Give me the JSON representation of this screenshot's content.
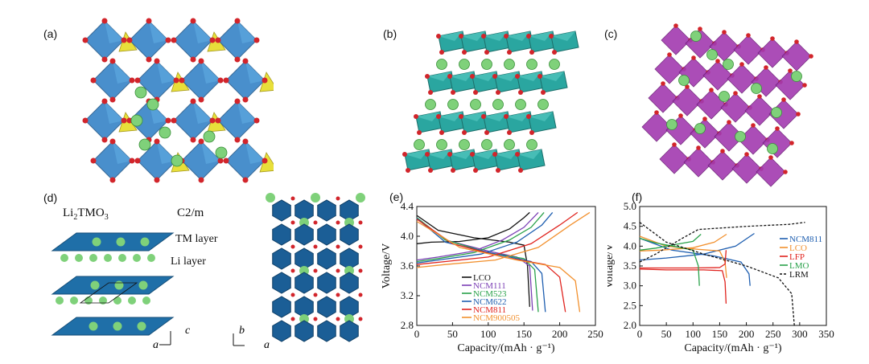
{
  "panels": {
    "a": {
      "label": "(a)"
    },
    "b": {
      "label": "(b)"
    },
    "c": {
      "label": "(c)"
    },
    "d": {
      "label": "(d)",
      "formula_main": "Li",
      "formula_sub": "2",
      "formula_rest": "TMO",
      "formula_sub2": "3",
      "space_group": "C2/m",
      "tm_layer": "TM layer",
      "li_layer": "Li layer",
      "axis_c": "c",
      "axis_a": "a",
      "axis_b": "b",
      "axis_a2": "a"
    },
    "e": {
      "label": "(e)"
    },
    "f": {
      "label": "(f)"
    }
  },
  "colors": {
    "blue_octa": "#3a86c8",
    "yellow_tetra": "#e8df3a",
    "teal_octa": "#2aa6a0",
    "purple_octa": "#a33ab0",
    "li_green": "#7fd17a",
    "oxygen_red": "#d2252b",
    "layer_blue": "#1f6fa8"
  },
  "chart_data": [
    {
      "type": "line",
      "panel": "e",
      "xlabel": "Capacity/(mAh · g⁻¹)",
      "ylabel": "Voltage/V",
      "xlim": [
        0,
        250
      ],
      "ylim": [
        2.8,
        4.4
      ],
      "xticks": [
        "0",
        "50",
        "100",
        "150",
        "200",
        "250"
      ],
      "yticks": [
        "2.8",
        "3.2",
        "3.6",
        "4.0",
        "4.4"
      ],
      "legend_position": "bottom-center",
      "series": [
        {
          "name": "LCO",
          "color": "#111111",
          "charge": [
            [
              0,
              3.9
            ],
            [
              20,
              3.92
            ],
            [
              60,
              3.93
            ],
            [
              100,
              3.98
            ],
            [
              130,
              4.1
            ],
            [
              150,
              4.25
            ],
            [
              158,
              4.32
            ]
          ],
          "discharge": [
            [
              0,
              4.28
            ],
            [
              30,
              4.08
            ],
            [
              80,
              3.98
            ],
            [
              130,
              3.92
            ],
            [
              150,
              3.88
            ],
            [
              155,
              3.6
            ],
            [
              158,
              3.05
            ]
          ]
        },
        {
          "name": "NCM111",
          "color": "#7b3fb5",
          "charge": [
            [
              0,
              3.68
            ],
            [
              30,
              3.72
            ],
            [
              80,
              3.8
            ],
            [
              120,
              3.95
            ],
            [
              150,
              4.12
            ],
            [
              170,
              4.32
            ]
          ],
          "discharge": [
            [
              0,
              4.25
            ],
            [
              40,
              3.95
            ],
            [
              100,
              3.8
            ],
            [
              140,
              3.72
            ],
            [
              158,
              3.6
            ],
            [
              162,
              3.0
            ]
          ]
        },
        {
          "name": "NCM523",
          "color": "#2aa24a",
          "charge": [
            [
              0,
              3.66
            ],
            [
              30,
              3.7
            ],
            [
              80,
              3.78
            ],
            [
              130,
              3.95
            ],
            [
              160,
              4.12
            ],
            [
              178,
              4.32
            ]
          ],
          "discharge": [
            [
              0,
              4.25
            ],
            [
              40,
              3.95
            ],
            [
              100,
              3.78
            ],
            [
              150,
              3.7
            ],
            [
              165,
              3.55
            ],
            [
              170,
              2.98
            ]
          ]
        },
        {
          "name": "NCM622",
          "color": "#1f5fb0",
          "charge": [
            [
              0,
              3.64
            ],
            [
              30,
              3.68
            ],
            [
              90,
              3.76
            ],
            [
              140,
              3.92
            ],
            [
              175,
              4.15
            ],
            [
              190,
              4.32
            ]
          ],
          "discharge": [
            [
              0,
              4.24
            ],
            [
              40,
              3.92
            ],
            [
              110,
              3.76
            ],
            [
              160,
              3.66
            ],
            [
              175,
              3.5
            ],
            [
              180,
              2.98
            ]
          ]
        },
        {
          "name": "NCM811",
          "color": "#e0231e",
          "charge": [
            [
              0,
              3.62
            ],
            [
              40,
              3.66
            ],
            [
              100,
              3.72
            ],
            [
              160,
              3.9
            ],
            [
              200,
              4.15
            ],
            [
              225,
              4.32
            ]
          ],
          "discharge": [
            [
              0,
              4.23
            ],
            [
              50,
              3.9
            ],
            [
              120,
              3.72
            ],
            [
              180,
              3.62
            ],
            [
              200,
              3.45
            ],
            [
              208,
              2.98
            ]
          ]
        },
        {
          "name": "NCM900505",
          "color": "#f2912f",
          "charge": [
            [
              0,
              3.58
            ],
            [
              40,
              3.62
            ],
            [
              110,
              3.68
            ],
            [
              170,
              3.85
            ],
            [
              215,
              4.15
            ],
            [
              242,
              4.32
            ]
          ],
          "discharge": [
            [
              0,
              4.2
            ],
            [
              60,
              3.85
            ],
            [
              140,
              3.68
            ],
            [
              200,
              3.58
            ],
            [
              222,
              3.4
            ],
            [
              228,
              2.98
            ]
          ]
        }
      ]
    },
    {
      "type": "line",
      "panel": "f",
      "xlabel": "Capacity/(mAh · g⁻¹)",
      "ylabel": "Voltage/V",
      "xlim": [
        0,
        350
      ],
      "ylim": [
        2.0,
        5.0
      ],
      "xticks": [
        "0",
        "50",
        "100",
        "150",
        "200",
        "250",
        "300",
        "350"
      ],
      "yticks": [
        "2.0",
        "2.5",
        "3.0",
        "3.5",
        "4.0",
        "4.5",
        "5.0"
      ],
      "legend_position": "right",
      "series": [
        {
          "name": "NCM811",
          "color": "#1f5fb0",
          "dash": "",
          "charge": [
            [
              0,
              3.65
            ],
            [
              50,
              3.7
            ],
            [
              120,
              3.8
            ],
            [
              180,
              4.0
            ],
            [
              215,
              4.32
            ]
          ],
          "discharge": [
            [
              0,
              4.2
            ],
            [
              60,
              3.9
            ],
            [
              140,
              3.75
            ],
            [
              190,
              3.6
            ],
            [
              205,
              3.3
            ],
            [
              207,
              3.0
            ]
          ]
        },
        {
          "name": "LCO",
          "color": "#f2912f",
          "dash": "",
          "charge": [
            [
              0,
              3.88
            ],
            [
              40,
              3.9
            ],
            [
              100,
              3.96
            ],
            [
              140,
              4.1
            ],
            [
              163,
              4.3
            ]
          ],
          "discharge": [
            [
              0,
              4.25
            ],
            [
              50,
              4.0
            ],
            [
              110,
              3.92
            ],
            [
              150,
              3.88
            ],
            [
              160,
              3.6
            ],
            [
              163,
              3.2
            ]
          ]
        },
        {
          "name": "LFP",
          "color": "#e0231e",
          "dash": "",
          "charge": [
            [
              0,
              3.45
            ],
            [
              20,
              3.45
            ],
            [
              100,
              3.45
            ],
            [
              150,
              3.46
            ],
            [
              160,
              3.55
            ],
            [
              162,
              3.9
            ]
          ],
          "discharge": [
            [
              0,
              3.42
            ],
            [
              50,
              3.4
            ],
            [
              120,
              3.4
            ],
            [
              155,
              3.38
            ],
            [
              160,
              3.1
            ],
            [
              162,
              2.55
            ]
          ]
        },
        {
          "name": "LMO",
          "color": "#2aa24a",
          "dash": "",
          "charge": [
            [
              0,
              3.9
            ],
            [
              30,
              3.95
            ],
            [
              70,
              4.05
            ],
            [
              100,
              4.12
            ],
            [
              115,
              4.3
            ]
          ],
          "discharge": [
            [
              0,
              4.2
            ],
            [
              30,
              4.08
            ],
            [
              70,
              3.98
            ],
            [
              100,
              3.9
            ],
            [
              110,
              3.5
            ],
            [
              112,
              3.0
            ]
          ]
        },
        {
          "name": "LRM",
          "color": "#111111",
          "dash": "3,2",
          "charge": [
            [
              0,
              3.6
            ],
            [
              30,
              3.8
            ],
            [
              80,
              4.2
            ],
            [
              110,
              4.42
            ],
            [
              200,
              4.5
            ],
            [
              280,
              4.55
            ],
            [
              310,
              4.6
            ]
          ],
          "discharge": [
            [
              0,
              4.6
            ],
            [
              50,
              4.1
            ],
            [
              120,
              3.8
            ],
            [
              200,
              3.5
            ],
            [
              260,
              3.2
            ],
            [
              285,
              2.8
            ],
            [
              290,
              2.0
            ]
          ]
        }
      ]
    }
  ]
}
